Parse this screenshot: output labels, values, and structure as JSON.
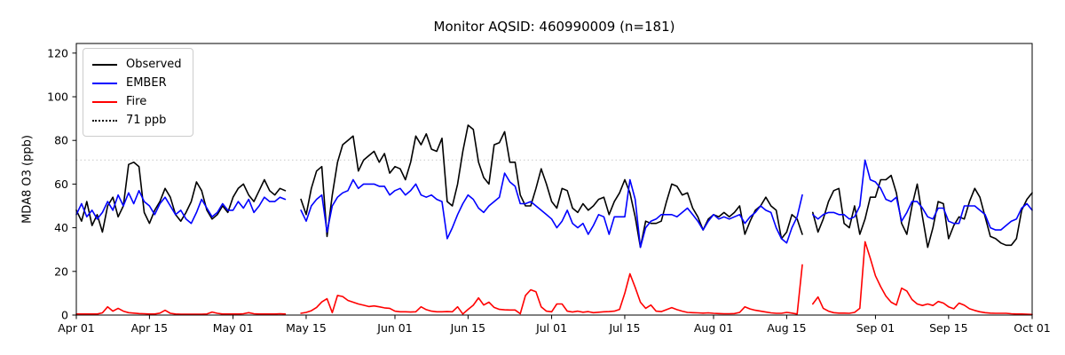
{
  "figure": {
    "title": "Monitor AQSID: 460990009 (n=181)"
  },
  "chart_data": {
    "type": "line",
    "title": "Monitor AQSID: 460990009 (n=181)",
    "xlabel": "",
    "ylabel": "MDA8 O3 (ppb)",
    "ylim": [
      0,
      124.4
    ],
    "y_ticks": [
      0,
      20,
      40,
      60,
      80,
      100,
      120
    ],
    "x_tick_labels": [
      "Apr 01",
      "Apr 15",
      "May 01",
      "May 15",
      "Jun 01",
      "Jun 15",
      "Jul 01",
      "Jul 15",
      "Aug 01",
      "Aug 15",
      "Sep 01",
      "Sep 15",
      "Oct 01"
    ],
    "x_tick_day_index": [
      0,
      14,
      30,
      44,
      61,
      75,
      91,
      105,
      122,
      136,
      153,
      167,
      183
    ],
    "x_start_label": "Apr 01",
    "x_end_label": "Oct 01",
    "n_points": 181,
    "grid": false,
    "legend_position": "upper left",
    "threshold": {
      "value": 71,
      "label": "71 ppb",
      "color": "#d3d3d3",
      "style": "dotted"
    },
    "series": [
      {
        "name": "Observed",
        "color": "#000000",
        "values": [
          48,
          43,
          52,
          41,
          46,
          38,
          50,
          54,
          45,
          50,
          69,
          70,
          68,
          47,
          42,
          48,
          52,
          58,
          54,
          46,
          43,
          47,
          52,
          61,
          57,
          48,
          44,
          46,
          50,
          47,
          54,
          58,
          60,
          55,
          52,
          57,
          62,
          57,
          55,
          58,
          57,
          null,
          null,
          53,
          46,
          58,
          66,
          68,
          36,
          55,
          70,
          78,
          80,
          82,
          66,
          71,
          73,
          75,
          70,
          74,
          65,
          68,
          67,
          62,
          70,
          82,
          78,
          83,
          76,
          75,
          81,
          52,
          50,
          60,
          75,
          87,
          85,
          70,
          63,
          60,
          78,
          79,
          84,
          70,
          70,
          55,
          50,
          50,
          58,
          67,
          60,
          52,
          49,
          58,
          57,
          49,
          47,
          51,
          48,
          50,
          53,
          54,
          46,
          52,
          56,
          62,
          56,
          45,
          31,
          43,
          42,
          42,
          43,
          52,
          60,
          59,
          55,
          56,
          49,
          45,
          39,
          44,
          46,
          45,
          47,
          45,
          47,
          50,
          37,
          43,
          48,
          50,
          54,
          50,
          48,
          35,
          38,
          46,
          44,
          37,
          null,
          47,
          38,
          44,
          52,
          57,
          58,
          42,
          40,
          50,
          37,
          44,
          54,
          54,
          62,
          62,
          64,
          56,
          42,
          37,
          50,
          60,
          45,
          31,
          40,
          52,
          51,
          35,
          41,
          45,
          44,
          52,
          58,
          54,
          45,
          36,
          35,
          33,
          32,
          32,
          35,
          48,
          53,
          56
        ]
      },
      {
        "name": "EMBER",
        "color": "#0000ff",
        "values": [
          46,
          51,
          45,
          48,
          44,
          47,
          52,
          48,
          55,
          50,
          56,
          51,
          57,
          52,
          50,
          46,
          51,
          54,
          50,
          46,
          48,
          44,
          42,
          47,
          53,
          49,
          45,
          47,
          51,
          48,
          48,
          52,
          49,
          53,
          47,
          50,
          54,
          52,
          52,
          54,
          53,
          null,
          null,
          48,
          43,
          50,
          53,
          55,
          38,
          50,
          54,
          56,
          57,
          62,
          58,
          60,
          60,
          60,
          59,
          59,
          55,
          57,
          58,
          55,
          57,
          60,
          55,
          54,
          55,
          53,
          52,
          35,
          40,
          46,
          51,
          55,
          53,
          49,
          47,
          50,
          52,
          54,
          65,
          61,
          59,
          51,
          51,
          52,
          50,
          48,
          46,
          44,
          40,
          43,
          48,
          42,
          40,
          42,
          37,
          41,
          46,
          45,
          37,
          45,
          45,
          45,
          62,
          53,
          31,
          40,
          43,
          44,
          46,
          46,
          46,
          45,
          47,
          49,
          46,
          43,
          39,
          43,
          46,
          44,
          45,
          44,
          45,
          46,
          42,
          45,
          47,
          50,
          48,
          47,
          40,
          35,
          33,
          40,
          45,
          55,
          null,
          46,
          44,
          46,
          47,
          47,
          46,
          46,
          44,
          45,
          50,
          71,
          62,
          61,
          58,
          53,
          52,
          54,
          43,
          47,
          52,
          52,
          49,
          45,
          44,
          49,
          49,
          43,
          42,
          42,
          50,
          50,
          50,
          48,
          46,
          40,
          39,
          39,
          41,
          43,
          44,
          49,
          51,
          48
        ]
      },
      {
        "name": "Fire",
        "color": "#ff0000",
        "values": [
          0.5,
          0.5,
          0.5,
          0.5,
          0.5,
          1,
          3.8,
          1.8,
          3.1,
          1.8,
          1.1,
          0.9,
          0.7,
          0.6,
          0.5,
          0.5,
          0.9,
          2.2,
          0.8,
          0.5,
          0.4,
          0.4,
          0.4,
          0.4,
          0.4,
          0.5,
          1.4,
          0.8,
          0.5,
          0.5,
          0.5,
          0.5,
          0.6,
          1.1,
          0.6,
          0.5,
          0.5,
          0.5,
          0.5,
          0.6,
          0.5,
          null,
          null,
          0.8,
          1.2,
          2,
          3.5,
          6,
          7.5,
          1.1,
          9,
          8.5,
          6.7,
          5.9,
          5.1,
          4.5,
          3.9,
          4.2,
          3.8,
          3.3,
          3.1,
          1.8,
          1.5,
          1.5,
          1.4,
          1.5,
          3.8,
          2.5,
          1.8,
          1.5,
          1.5,
          1.6,
          1.5,
          3.8,
          0.5,
          2.6,
          4.5,
          7.9,
          4.6,
          5.9,
          3.5,
          2.6,
          2.4,
          2.3,
          2.3,
          0.6,
          9,
          11.6,
          10.7,
          3.8,
          1.8,
          1.5,
          5.1,
          5.1,
          1.8,
          1.4,
          1.8,
          1.3,
          1.6,
          1.1,
          1.3,
          1.5,
          1.6,
          1.8,
          2.6,
          10,
          18.9,
          12.7,
          5.9,
          3.1,
          4.6,
          1.8,
          1.6,
          2.5,
          3.4,
          2.5,
          1.8,
          1.2,
          1.1,
          1,
          0.9,
          1,
          0.8,
          0.7,
          0.6,
          0.6,
          0.7,
          1.2,
          3.8,
          2.8,
          2.2,
          1.8,
          1.4,
          1,
          0.8,
          0.8,
          1.2,
          0.9,
          0.5,
          23,
          null,
          5.1,
          8.3,
          3.1,
          1.8,
          1.1,
          0.9,
          0.9,
          0.8,
          1.2,
          3.1,
          33.6,
          26,
          18,
          13,
          8.7,
          5.9,
          4.6,
          12.3,
          11,
          7.1,
          5.1,
          4.4,
          5.1,
          4.4,
          6.2,
          5.5,
          3.8,
          2.9,
          5.5,
          4.5,
          2.9,
          2.1,
          1.5,
          1.1,
          0.9,
          0.8,
          0.8,
          0.8,
          0.6,
          0.5,
          0.5,
          0.4,
          0.3
        ]
      }
    ]
  }
}
